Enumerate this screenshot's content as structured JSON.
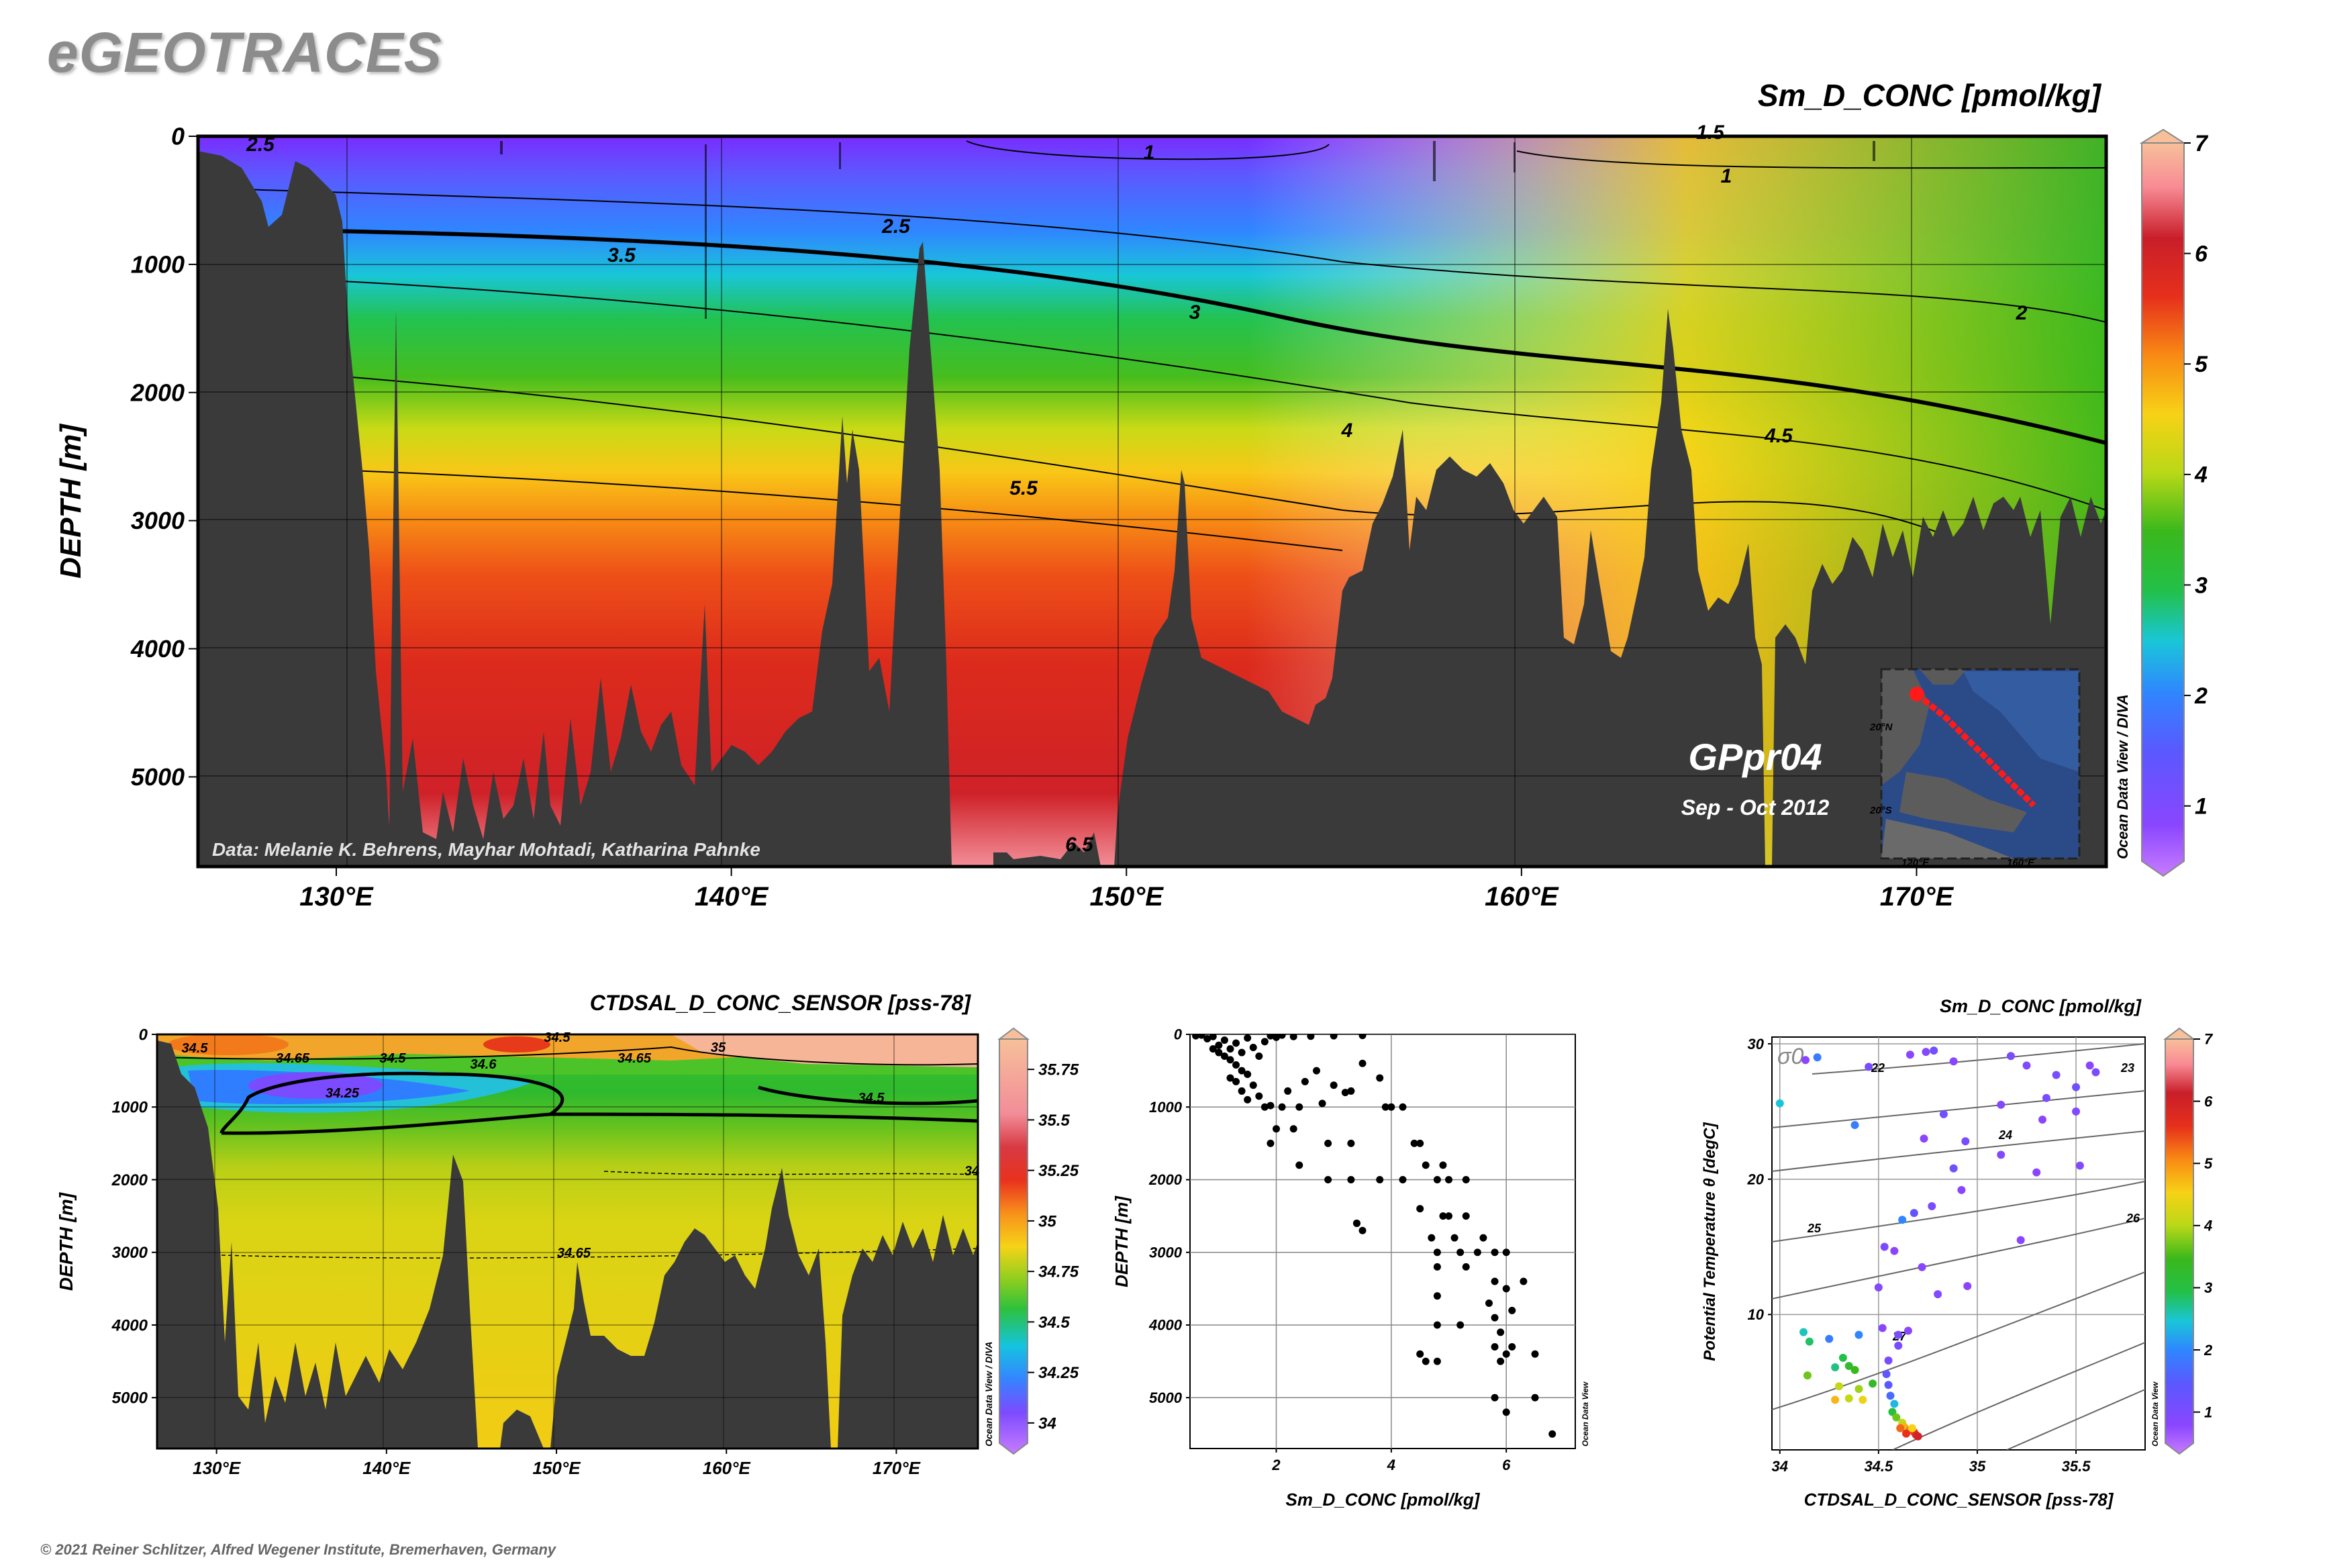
{
  "brand": "eGEOTRACES",
  "copyright": "© 2021 Reiner Schlitzer, Alfred Wegener Institute, Bremerhaven, Germany",
  "chart_data": [
    {
      "type": "heatmap",
      "title": "Sm_D_CONC [pmol/kg]",
      "ylabel": "DEPTH [m]",
      "x_ticks": [
        "130°E",
        "140°E",
        "150°E",
        "160°E",
        "170°E"
      ],
      "x_tick_values": [
        130,
        140,
        150,
        160,
        170
      ],
      "y_ticks": [
        "0",
        "1000",
        "2000",
        "3000",
        "4000",
        "5000"
      ],
      "y_tick_values": [
        0,
        1000,
        2000,
        3000,
        4000,
        5000
      ],
      "xlim": [
        126.5,
        174.8
      ],
      "ylim": [
        5700,
        0
      ],
      "colorbar_ticks": [
        "1",
        "2",
        "3",
        "4",
        "5",
        "6",
        "7"
      ],
      "colorbar_range": [
        0.5,
        7
      ],
      "contour_labels": [
        "2.5",
        "1",
        "1.5",
        "1",
        "2.5",
        "3.5",
        "3",
        "2",
        "4",
        "4.5",
        "5.5",
        "6.5"
      ],
      "credit": "Data: Melanie K. Behrens, Mayhar Mohtadi, Katharina Pahnke",
      "section_name": "GPpr04",
      "section_date": "Sep - Oct 2012",
      "software": "Ocean Data View / DIVA",
      "inset_map": {
        "lat_labels": [
          "20°N",
          "20°S"
        ],
        "lon_labels": [
          "120°E",
          "160°E"
        ]
      }
    },
    {
      "type": "heatmap",
      "title": "CTDSAL_D_CONC_SENSOR [pss-78]",
      "ylabel": "DEPTH [m]",
      "x_ticks": [
        "130°E",
        "140°E",
        "150°E",
        "160°E",
        "170°E"
      ],
      "x_tick_values": [
        130,
        140,
        150,
        160,
        170
      ],
      "y_ticks": [
        "0",
        "1000",
        "2000",
        "3000",
        "4000",
        "5000"
      ],
      "y_tick_values": [
        0,
        1000,
        2000,
        3000,
        4000,
        5000
      ],
      "xlim": [
        126.5,
        174.8
      ],
      "ylim": [
        5700,
        0
      ],
      "colorbar_ticks": [
        "34",
        "34.25",
        "34.5",
        "34.75",
        "35",
        "35.25",
        "35.5",
        "35.75"
      ],
      "colorbar_range": [
        33.9,
        35.9
      ],
      "contour_labels": [
        "34.5",
        "34.65",
        "34.5",
        "34.6",
        "34.25",
        "34.5",
        "34.65",
        "35",
        "34.5",
        "34",
        "34.65"
      ],
      "software": "Ocean Data View / DIVA"
    },
    {
      "type": "scatter",
      "xlabel": "Sm_D_CONC [pmol/kg]",
      "ylabel": "DEPTH [m]",
      "x_ticks": [
        "2",
        "4",
        "6"
      ],
      "x_tick_values": [
        2,
        4,
        6
      ],
      "y_ticks": [
        "0",
        "1000",
        "2000",
        "3000",
        "4000",
        "5000"
      ],
      "y_tick_values": [
        0,
        1000,
        2000,
        3000,
        4000,
        5000
      ],
      "xlim": [
        0.5,
        7.2
      ],
      "ylim": [
        5700,
        0
      ],
      "grid": true,
      "software": "Ocean Data View",
      "points": [
        [
          0.6,
          20
        ],
        [
          0.7,
          10
        ],
        [
          0.8,
          60
        ],
        [
          0.9,
          30
        ],
        [
          1.0,
          150
        ],
        [
          1.1,
          80
        ],
        [
          1.2,
          200
        ],
        [
          1.3,
          120
        ],
        [
          1.4,
          250
        ],
        [
          1.5,
          50
        ],
        [
          1.6,
          180
        ],
        [
          1.7,
          300
        ],
        [
          1.8,
          100
        ],
        [
          1.9,
          20
        ],
        [
          2.0,
          40
        ],
        [
          2.1,
          10
        ],
        [
          2.3,
          30
        ],
        [
          2.6,
          25
        ],
        [
          3.0,
          20
        ],
        [
          3.5,
          15
        ],
        [
          0.9,
          200
        ],
        [
          1.0,
          250
        ],
        [
          1.1,
          300
        ],
        [
          1.2,
          350
        ],
        [
          1.3,
          420
        ],
        [
          1.4,
          500
        ],
        [
          1.2,
          600
        ],
        [
          1.3,
          650
        ],
        [
          1.5,
          550
        ],
        [
          1.6,
          700
        ],
        [
          1.4,
          780
        ],
        [
          1.7,
          850
        ],
        [
          1.5,
          900
        ],
        [
          1.8,
          1000
        ],
        [
          1.9,
          980
        ],
        [
          2.1,
          1000
        ],
        [
          2.4,
          1000
        ],
        [
          2.8,
          950
        ],
        [
          2.2,
          780
        ],
        [
          2.5,
          650
        ],
        [
          2.7,
          500
        ],
        [
          3.0,
          700
        ],
        [
          3.3,
          780
        ],
        [
          3.2,
          800
        ],
        [
          3.5,
          400
        ],
        [
          3.8,
          600
        ],
        [
          3.9,
          1000
        ],
        [
          4.0,
          1000
        ],
        [
          4.2,
          1000
        ],
        [
          2.0,
          1300
        ],
        [
          2.3,
          1300
        ],
        [
          1.9,
          1500
        ],
        [
          2.9,
          1500
        ],
        [
          3.3,
          1500
        ],
        [
          2.4,
          1800
        ],
        [
          2.9,
          2000
        ],
        [
          3.3,
          2000
        ],
        [
          3.8,
          2000
        ],
        [
          4.5,
          1500
        ],
        [
          4.4,
          1500
        ],
        [
          4.6,
          1800
        ],
        [
          4.2,
          2000
        ],
        [
          4.8,
          2000
        ],
        [
          5.0,
          2000
        ],
        [
          4.9,
          1800
        ],
        [
          5.3,
          2000
        ],
        [
          3.4,
          2600
        ],
        [
          3.5,
          2700
        ],
        [
          3.4,
          2600
        ],
        [
          4.5,
          2400
        ],
        [
          4.9,
          2500
        ],
        [
          5.0,
          2500
        ],
        [
          5.3,
          2500
        ],
        [
          4.7,
          2800
        ],
        [
          5.1,
          2800
        ],
        [
          5.6,
          2800
        ],
        [
          4.8,
          3000
        ],
        [
          5.2,
          3000
        ],
        [
          5.5,
          3000
        ],
        [
          5.8,
          3000
        ],
        [
          6.0,
          3000
        ],
        [
          4.8,
          3200
        ],
        [
          5.3,
          3200
        ],
        [
          5.8,
          3400
        ],
        [
          6.0,
          3500
        ],
        [
          6.3,
          3400
        ],
        [
          4.8,
          3600
        ],
        [
          5.7,
          3700
        ],
        [
          5.8,
          3900
        ],
        [
          6.1,
          3800
        ],
        [
          4.8,
          4000
        ],
        [
          5.2,
          4000
        ],
        [
          5.9,
          4100
        ],
        [
          5.8,
          4300
        ],
        [
          6.1,
          4300
        ],
        [
          4.5,
          4400
        ],
        [
          4.6,
          4500
        ],
        [
          4.8,
          4500
        ],
        [
          5.9,
          4500
        ],
        [
          6.0,
          4400
        ],
        [
          6.5,
          4400
        ],
        [
          5.8,
          5000
        ],
        [
          6.5,
          5000
        ],
        [
          6.0,
          5200
        ],
        [
          6.8,
          5500
        ]
      ]
    },
    {
      "type": "scatter",
      "title": "Sm_D_CONC [pmol/kg]",
      "xlabel": "CTDSAL_D_CONC_SENSOR [pss-78]",
      "ylabel": "Potential Temperature θ [degC]",
      "x_ticks": [
        "34",
        "34.5",
        "35",
        "35.5"
      ],
      "x_tick_values": [
        34,
        34.5,
        35,
        35.5
      ],
      "y_ticks": [
        "10",
        "20",
        "30"
      ],
      "y_tick_values": [
        10,
        20,
        30
      ],
      "xlim": [
        33.96,
        35.85
      ],
      "ylim": [
        0,
        30.5
      ],
      "grid": true,
      "sigma_label": "σ0",
      "isopycnal_labels": [
        "22",
        "23",
        "24",
        "25",
        "26",
        "27"
      ],
      "colorbar_ticks": [
        "1",
        "2",
        "3",
        "4",
        "5",
        "6",
        "7"
      ],
      "colorbar_range": [
        0.5,
        7
      ],
      "software": "Ocean Data View",
      "points": [
        [
          34.13,
          28.8,
          1.0
        ],
        [
          34.19,
          29.0,
          2.0
        ],
        [
          34.45,
          28.3,
          1.2
        ],
        [
          34.66,
          29.2,
          1.0
        ],
        [
          34.74,
          29.4,
          1.1
        ],
        [
          34.78,
          29.5,
          1.3
        ],
        [
          34.88,
          28.7,
          1.0
        ],
        [
          35.17,
          29.1,
          1.2
        ],
        [
          35.25,
          28.4,
          1.1
        ],
        [
          35.4,
          27.7,
          1.2
        ],
        [
          35.57,
          28.4,
          1.0
        ],
        [
          35.6,
          27.9,
          1.2
        ],
        [
          35.5,
          26.8,
          1.3
        ],
        [
          35.35,
          26.0,
          1.2
        ],
        [
          35.5,
          25.0,
          1.1
        ],
        [
          35.33,
          24.4,
          1.0
        ],
        [
          35.12,
          25.5,
          1.1
        ],
        [
          34.83,
          24.8,
          1.3
        ],
        [
          34.73,
          23.0,
          1.0
        ],
        [
          34.94,
          22.8,
          1.2
        ],
        [
          35.12,
          21.8,
          1.1
        ],
        [
          35.3,
          20.5,
          1.0
        ],
        [
          35.52,
          21.0,
          1.1
        ],
        [
          34.88,
          20.8,
          1.3
        ],
        [
          34.92,
          19.2,
          1.0
        ],
        [
          34.77,
          18.0,
          1.2
        ],
        [
          34.68,
          17.5,
          1.5
        ],
        [
          34.62,
          17.0,
          2.1
        ],
        [
          34.53,
          15.0,
          1.2
        ],
        [
          34.58,
          14.7,
          1.0
        ],
        [
          35.22,
          15.5,
          1.0
        ],
        [
          34.5,
          12.0,
          1.1
        ],
        [
          34.72,
          13.5,
          1.0
        ],
        [
          34.8,
          11.5,
          1.1
        ],
        [
          34.95,
          12.1,
          1.0
        ],
        [
          34.38,
          24.0,
          2.0
        ],
        [
          34.0,
          25.6,
          2.6
        ],
        [
          34.12,
          8.7,
          2.7
        ],
        [
          34.15,
          8.0,
          3.0
        ],
        [
          34.25,
          8.2,
          2.0
        ],
        [
          34.4,
          8.5,
          2.1
        ],
        [
          34.52,
          9.0,
          1.0
        ],
        [
          34.6,
          8.5,
          1.2
        ],
        [
          34.65,
          8.8,
          1.0
        ],
        [
          34.6,
          7.7,
          1.2
        ],
        [
          34.28,
          6.1,
          2.9
        ],
        [
          34.32,
          6.8,
          3.1
        ],
        [
          34.35,
          6.2,
          3.4
        ],
        [
          34.38,
          5.9,
          3.6
        ],
        [
          34.14,
          5.5,
          3.8
        ],
        [
          34.3,
          4.7,
          4.2
        ],
        [
          34.4,
          4.5,
          4.0
        ],
        [
          34.47,
          4.9,
          3.5
        ],
        [
          34.28,
          3.7,
          4.8
        ],
        [
          34.35,
          3.8,
          4.2
        ],
        [
          34.42,
          3.7,
          4.5
        ],
        [
          34.55,
          6.6,
          1.2
        ],
        [
          34.54,
          5.6,
          1.5
        ],
        [
          34.55,
          4.8,
          1.6
        ],
        [
          34.56,
          4.0,
          1.8
        ],
        [
          34.58,
          3.4,
          2.5
        ],
        [
          34.57,
          2.8,
          3.2
        ],
        [
          34.59,
          2.4,
          3.8
        ],
        [
          34.62,
          2.0,
          4.2
        ],
        [
          34.63,
          1.7,
          4.8
        ],
        [
          34.66,
          1.5,
          5.2
        ],
        [
          34.68,
          1.3,
          5.5
        ],
        [
          34.69,
          1.1,
          5.8
        ],
        [
          34.7,
          1.0,
          6.0
        ],
        [
          34.61,
          1.6,
          5.3
        ],
        [
          34.64,
          1.2,
          5.6
        ],
        [
          34.67,
          1.6,
          4.6
        ]
      ]
    }
  ]
}
